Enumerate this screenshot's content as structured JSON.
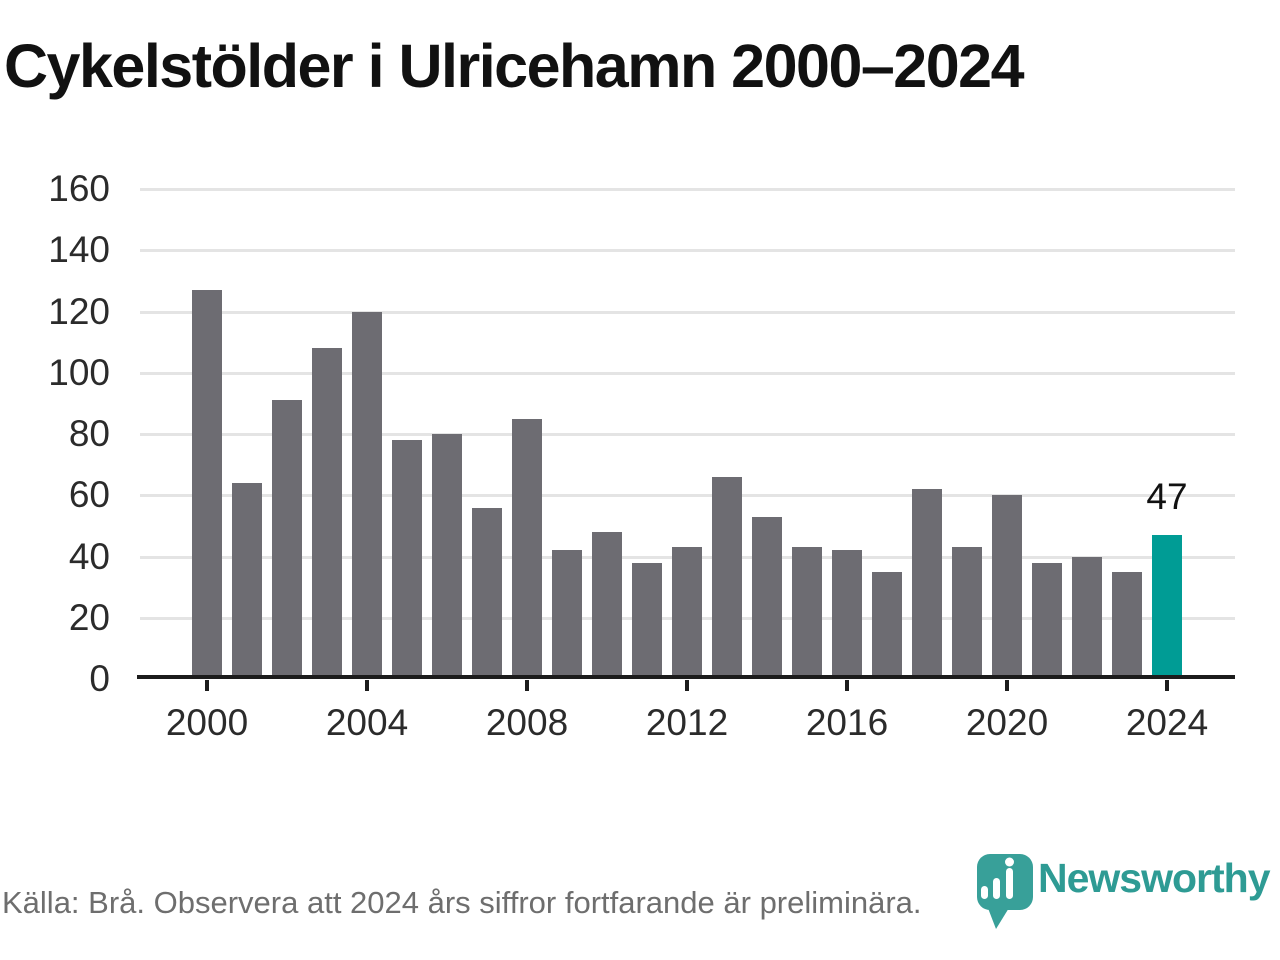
{
  "title": "Cykelstölder i Ulricehamn 2000–2024",
  "footer": {
    "source_note": "Källa: Brå. Observera att 2024 års siffror fortfarande är preliminära.",
    "logo_text": "Newsworthy"
  },
  "colors": {
    "bar_gray": "#6d6c72",
    "highlight_teal": "#009c95",
    "logo_icon_teal": "#38a099",
    "logo_text_teal": "#2e9b94",
    "gridline": "#e4e4e4",
    "axis": "#1c1c1c",
    "footer_text": "#6e6e6e"
  },
  "chart_data": {
    "type": "bar",
    "title": "Cykelstölder i Ulricehamn 2000–2024",
    "categories": [
      2000,
      2001,
      2002,
      2003,
      2004,
      2005,
      2006,
      2007,
      2008,
      2009,
      2010,
      2011,
      2012,
      2013,
      2014,
      2015,
      2016,
      2017,
      2018,
      2019,
      2020,
      2021,
      2022,
      2023,
      2024
    ],
    "values": [
      127,
      64,
      91,
      108,
      120,
      78,
      80,
      56,
      85,
      42,
      48,
      38,
      43,
      66,
      53,
      43,
      42,
      35,
      62,
      43,
      60,
      38,
      40,
      35,
      47
    ],
    "highlight": {
      "year": 2024,
      "value": 47,
      "label": "47",
      "color": "#009c95"
    },
    "bar_color": "#6d6c72",
    "xlabel": "",
    "ylabel": "",
    "ylim": [
      0,
      160
    ],
    "yticks": [
      0,
      20,
      40,
      60,
      80,
      100,
      120,
      140,
      160
    ],
    "xtick_years": [
      2000,
      2004,
      2008,
      2012,
      2016,
      2020,
      2024
    ],
    "grid": true,
    "legend": false
  }
}
